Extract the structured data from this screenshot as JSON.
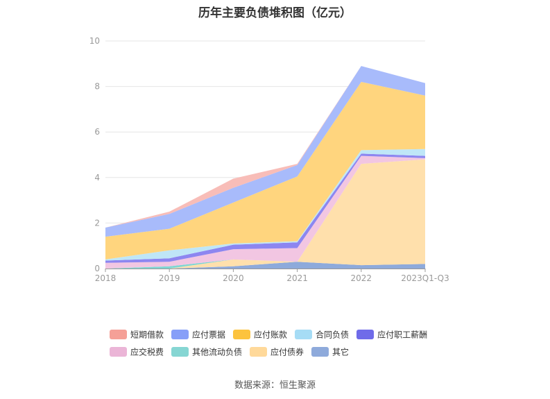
{
  "chart_data": {
    "type": "area",
    "stacked": true,
    "title": "历年主要负债堆积图（亿元）",
    "categories": [
      "2018",
      "2019",
      "2020",
      "2021",
      "2022",
      "2023Q1-Q3"
    ],
    "ylim": [
      0,
      10
    ],
    "yticks": [
      "0",
      "2",
      "4",
      "6",
      "8",
      "10"
    ],
    "grid": true,
    "legend_position": "bottom",
    "series": [
      {
        "name": "其它",
        "color": "#8eaadb",
        "values": [
          0.0,
          0.0,
          0.1,
          0.3,
          0.15,
          0.2
        ]
      },
      {
        "name": "应付债券",
        "color": "#ffe0ac",
        "values": [
          0.0,
          0.0,
          0.3,
          0.0,
          4.45,
          4.6
        ]
      },
      {
        "name": "其他流动负债",
        "color": "#7fd6d3",
        "values": [
          0.0,
          0.1,
          0.0,
          0.0,
          0.0,
          0.0
        ]
      },
      {
        "name": "应交税费",
        "color": "#f2c6e2",
        "values": [
          0.25,
          0.2,
          0.45,
          0.6,
          0.35,
          0.05
        ]
      },
      {
        "name": "应付职工薪酬",
        "color": "#8d86f0",
        "values": [
          0.1,
          0.15,
          0.2,
          0.25,
          0.1,
          0.1
        ]
      },
      {
        "name": "合同负债",
        "color": "#bfe6f7",
        "values": [
          0.05,
          0.35,
          0.05,
          0.05,
          0.15,
          0.3
        ]
      },
      {
        "name": "应付账款",
        "color": "#ffd57e",
        "values": [
          1.0,
          0.95,
          1.8,
          2.85,
          3.0,
          2.35
        ]
      },
      {
        "name": "应付票据",
        "color": "#a8bbfb",
        "values": [
          0.4,
          0.65,
          0.65,
          0.5,
          0.7,
          0.55
        ]
      },
      {
        "name": "短期借款",
        "color": "#f8bdb8",
        "values": [
          0.0,
          0.1,
          0.4,
          0.05,
          0.0,
          0.0
        ]
      }
    ]
  },
  "legend": {
    "items": [
      {
        "name": "短期借款",
        "color": "#f5a097"
      },
      {
        "name": "应付票据",
        "color": "#879ff8"
      },
      {
        "name": "应付账款",
        "color": "#fcc33e"
      },
      {
        "name": "合同负债",
        "color": "#a6dcf5"
      },
      {
        "name": "应付职工薪酬",
        "color": "#6f6be9"
      },
      {
        "name": "应交税费",
        "color": "#ebb5d7"
      },
      {
        "name": "其他流动负债",
        "color": "#86d6d3"
      },
      {
        "name": "应付债券",
        "color": "#ffd99a"
      },
      {
        "name": "其它",
        "color": "#8eaadb"
      }
    ]
  },
  "source": "数据来源：恒生聚源"
}
